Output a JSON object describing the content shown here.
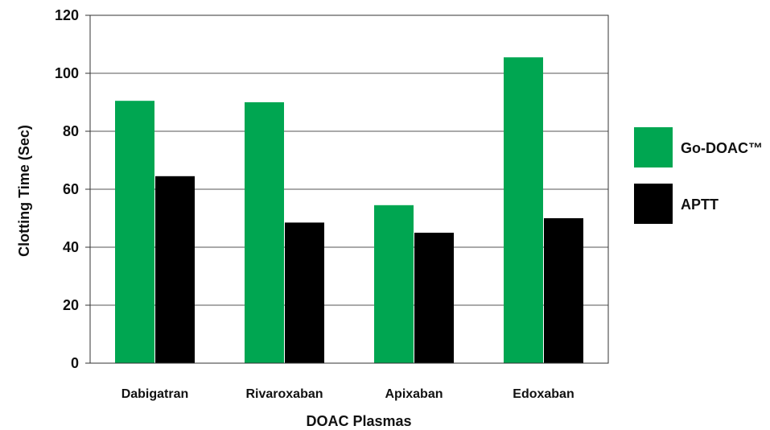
{
  "chart_data": {
    "type": "bar",
    "title": "",
    "xlabel": "DOAC Plasmas",
    "ylabel": "Clotting Time (Sec)",
    "ylim": [
      0,
      120
    ],
    "yticks": [
      0,
      20,
      40,
      60,
      80,
      100,
      120
    ],
    "grid": true,
    "legend_position": "right",
    "categories": [
      "Dabigatran",
      "Rivaroxaban",
      "Apixaban",
      "Edoxaban"
    ],
    "series": [
      {
        "name": "Go-DOAC™",
        "color": "#00a651",
        "values": [
          90.5,
          90,
          54.5,
          105.5
        ]
      },
      {
        "name": "APTT",
        "color": "#000000",
        "values": [
          64.5,
          48.5,
          45,
          50
        ]
      }
    ]
  }
}
